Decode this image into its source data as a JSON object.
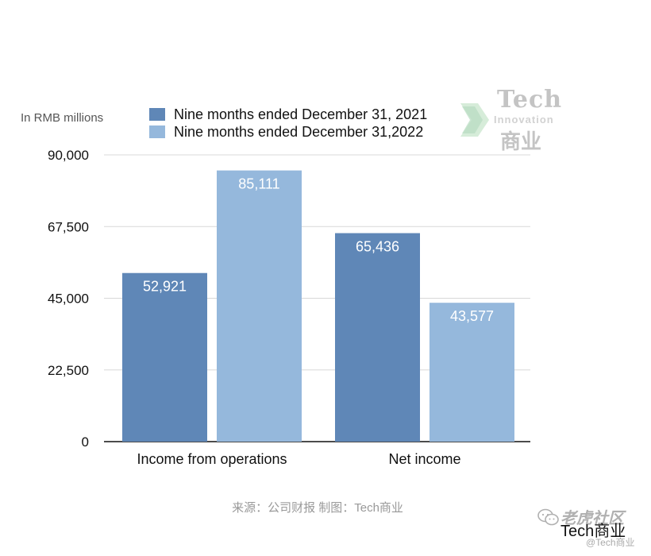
{
  "chart_data": {
    "type": "bar",
    "unit_label": "In RMB millions",
    "categories": [
      "Income from operations",
      "Net income"
    ],
    "series": [
      {
        "name": "Nine months ended December 31, 2021",
        "color": "#5f87b7",
        "values": [
          52921,
          65436
        ]
      },
      {
        "name": "Nine months ended December 31,2022",
        "color": "#95b8dc",
        "values": [
          85111,
          43577
        ]
      }
    ],
    "data_labels": [
      [
        "52,921",
        "65,436"
      ],
      [
        "85,111",
        "43,577"
      ]
    ],
    "yticks": [
      0,
      22500,
      45000,
      67500,
      90000
    ],
    "ytick_labels": [
      "0",
      "22,500",
      "45,000",
      "67,500",
      "90,000"
    ],
    "ylim": [
      0,
      90000
    ],
    "grid": true,
    "legend_position": "top"
  },
  "brand": {
    "tech": "Tech",
    "innovation": "Innovation",
    "cn": "商业"
  },
  "source_text": "来源：公司财报 制图：Tech商业",
  "watermark": {
    "line1": "老虎社区",
    "line2": "Tech商业",
    "line3": "@Tech商业",
    "icon": "wechat-icon"
  }
}
